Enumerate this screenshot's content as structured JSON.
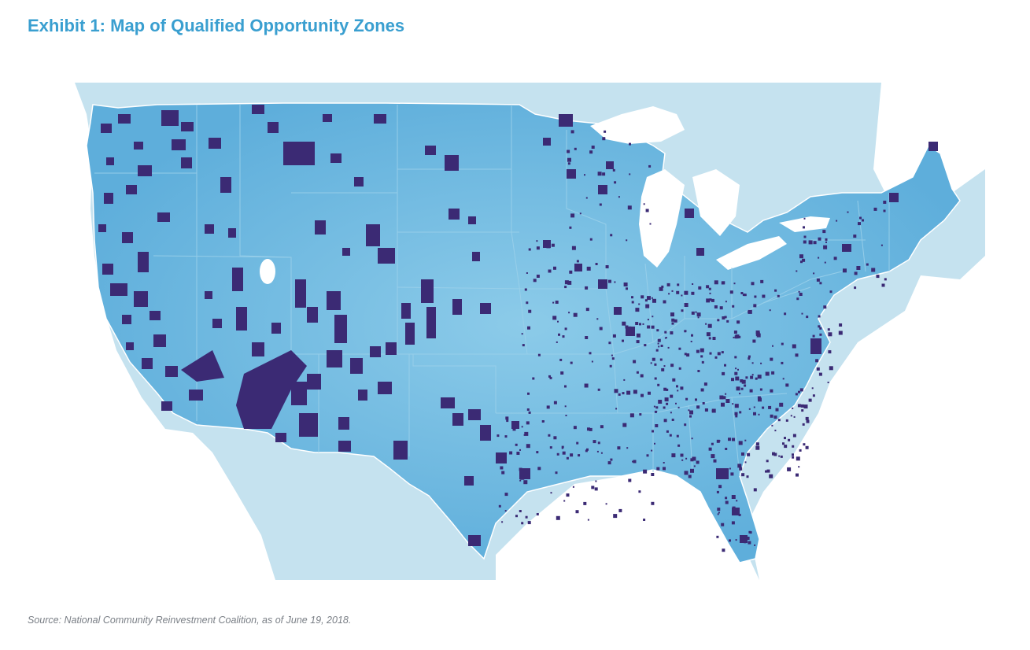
{
  "title": "Exhibit 1: Map of Qualified Opportunity Zones",
  "source": "Source: National Community Reinvestment Coalition, as of June 19, 2018.",
  "map": {
    "region": "contiguous-united-states",
    "colors": {
      "background_land": "#c5e2ef",
      "water": "#ffffff",
      "us_land": "#67b3dd",
      "state_border": "#8fc8e6",
      "opportunity_zone": "#3b2a74"
    }
  }
}
